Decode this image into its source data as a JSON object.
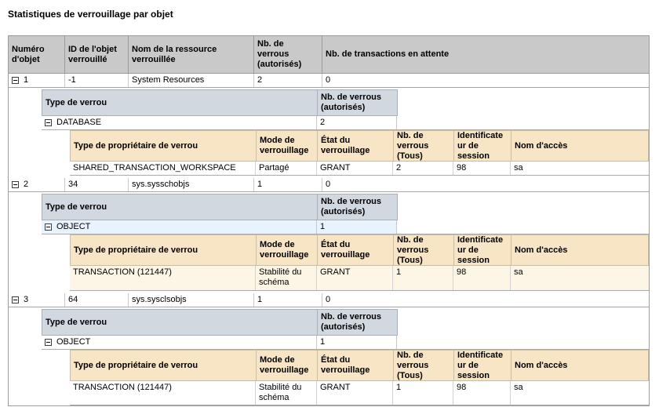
{
  "title": "Statistiques de verrouillage par objet",
  "colors": {
    "header_bg": "#c9c9c9",
    "lock_type_header_bg": "#d2d8e0",
    "owner_header_bg": "#f8e5c5",
    "alt_row_blue": "#e8f3fd",
    "alt_row_cream": "#fdf6e7",
    "border_gray": "#9d9d9d"
  },
  "table": {
    "headers": {
      "object_number": "Numéro d'objet",
      "object_id": "ID de l'objet verrouillé",
      "resource_name": "Nom de la ressource verrouillée",
      "granted_locks": "Nb. de verrous (autorisés)",
      "waiting_transactions": "Nb. de transactions en attente"
    },
    "lock_type_headers": {
      "type": "Type de verrou",
      "granted": "Nb. de verrous (autorisés)"
    },
    "owner_headers": {
      "owner_type": "Type de propriétaire de verrou",
      "mode": "Mode de verrouillage",
      "status": "État du verrouillage",
      "total": "Nb. de verrous (Tous)",
      "session_id": "Identificateur de session",
      "login": "Nom d'accès"
    },
    "groups": [
      {
        "object_number": "1",
        "object_id": "-1",
        "resource_name": "System Resources",
        "granted_locks": "2",
        "waiting_transactions": "0",
        "lock_type": {
          "type": "DATABASE",
          "granted": "2"
        },
        "owner": {
          "owner_type": "SHARED_TRANSACTION_WORKSPACE",
          "mode": "Partagé",
          "status": "GRANT",
          "total": "2",
          "session_id": "98",
          "login": "sa"
        }
      },
      {
        "object_number": "2",
        "object_id": "34",
        "resource_name": "sys.sysschobjs",
        "granted_locks": "1",
        "waiting_transactions": "0",
        "lock_type": {
          "type": "OBJECT",
          "granted": "1"
        },
        "owner": {
          "owner_type": "TRANSACTION (121447)",
          "mode": "Stabilité du schéma",
          "status": "GRANT",
          "total": "1",
          "session_id": "98",
          "login": "sa"
        }
      },
      {
        "object_number": "3",
        "object_id": "64",
        "resource_name": "sys.sysclsobjs",
        "granted_locks": "1",
        "waiting_transactions": "0",
        "lock_type": {
          "type": "OBJECT",
          "granted": "1"
        },
        "owner": {
          "owner_type": "TRANSACTION (121447)",
          "mode": "Stabilité du schéma",
          "status": "GRANT",
          "total": "1",
          "session_id": "98",
          "login": "sa"
        }
      }
    ]
  }
}
